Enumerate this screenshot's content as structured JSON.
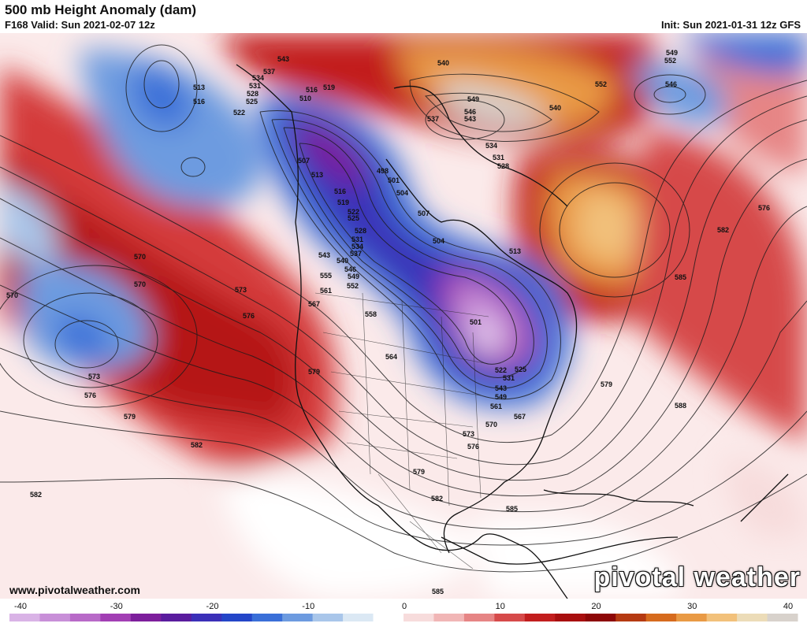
{
  "header": {
    "title": "500 mb Height Anomaly (dam)",
    "valid": "F168 Valid: Sun 2021-02-07 12z",
    "init": "Init: Sun 2021-01-31 12z GFS"
  },
  "footer": {
    "website": "www.pivotalweather.com",
    "brand": "pivotal weather"
  },
  "colorbar": {
    "ticks": [
      "-40",
      "-30",
      "-20",
      "-10",
      "0",
      "10",
      "20",
      "30",
      "40"
    ],
    "colors": [
      "#d9b3e6",
      "#c88fd8",
      "#b86ac8",
      "#a23fb4",
      "#7d1f9c",
      "#5a1c9e",
      "#3b30b8",
      "#2446c8",
      "#3a6fd8",
      "#6d9be0",
      "#a9c6ea",
      "#dbe8f4",
      "#ffffff",
      "#f7dcdc",
      "#f1b6b6",
      "#e68585",
      "#d64a4a",
      "#c21e1e",
      "#a80f0f",
      "#8d0707",
      "#b53a12",
      "#d66b1e",
      "#e99a45",
      "#f2c17b",
      "#ecdcb8",
      "#d8d2cc"
    ]
  },
  "contour_labels": [
    "543",
    "537",
    "534",
    "531",
    "528",
    "525",
    "513",
    "516",
    "519",
    "522",
    "516",
    "513",
    "510",
    "507",
    "513",
    "498",
    "501",
    "504",
    "507",
    "516",
    "519",
    "522",
    "525",
    "528",
    "531",
    "534",
    "537",
    "540",
    "543",
    "546",
    "549",
    "552",
    "555",
    "561",
    "567",
    "558",
    "564",
    "570",
    "573",
    "576",
    "579",
    "582",
    "585",
    "501",
    "504",
    "513",
    "522",
    "525",
    "531",
    "537",
    "543",
    "549",
    "555",
    "561",
    "567",
    "570",
    "573",
    "576",
    "579",
    "582",
    "585",
    "588",
    "540",
    "549",
    "546",
    "543",
    "537",
    "534",
    "531",
    "528",
    "552",
    "540",
    "549",
    "552",
    "546",
    "576",
    "582",
    "579",
    "585",
    "570",
    "570",
    "573",
    "576",
    "579",
    "582",
    "582",
    "585"
  ]
}
